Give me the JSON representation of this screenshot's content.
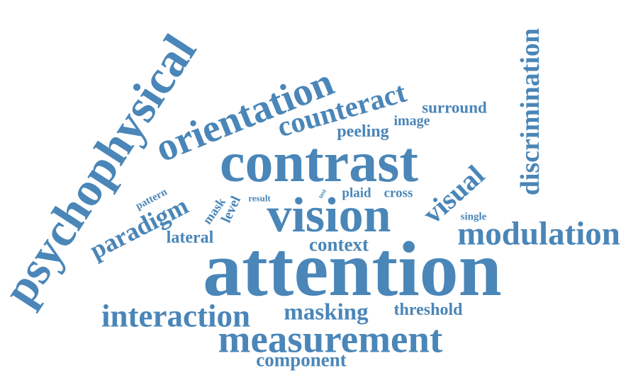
{
  "color": "#4a86b8",
  "words": {
    "psychophysical": "psychophysical",
    "orientation": "orientation",
    "counteract": "counteract",
    "surround": "surround",
    "image": "image",
    "peeling": "peeling",
    "contrast": "contrast",
    "discrimination": "discrimination",
    "visual": "visual",
    "pattern": "pattern",
    "paradigm": "paradigm",
    "mask": "mask",
    "level": "level",
    "result": "result",
    "test": "test",
    "plaid": "plaid",
    "cross": "cross",
    "single": "single",
    "vision": "vision",
    "lateral": "lateral",
    "context": "context",
    "modulation": "modulation",
    "attention": "attention",
    "interaction": "interaction",
    "masking": "masking",
    "threshold": "threshold",
    "measurement": "measurement",
    "component": "component"
  }
}
